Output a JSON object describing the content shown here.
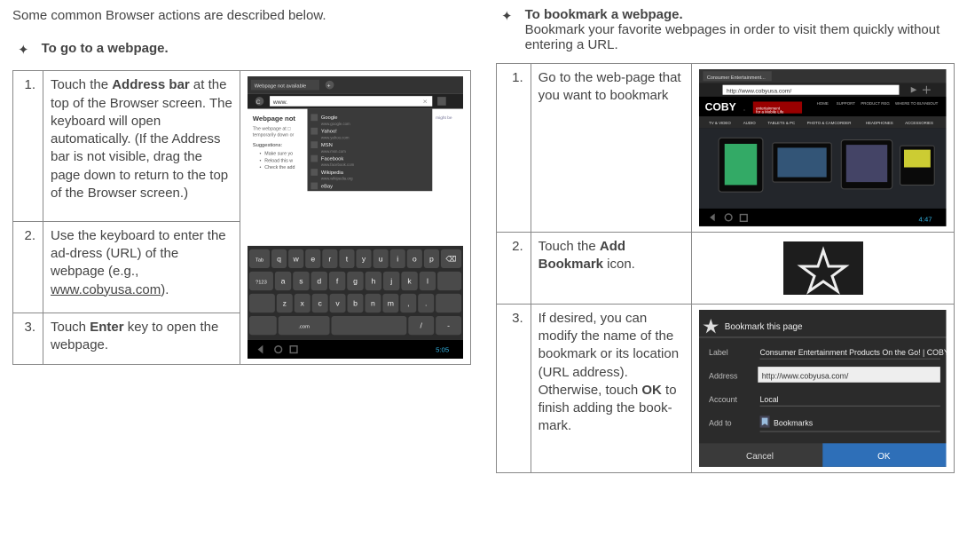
{
  "intro": "Some common Browser actions are described below.",
  "left": {
    "title": "To go to a webpage.",
    "steps": [
      {
        "num": "1.",
        "html": "Touch the <b>Address bar</b> at the top of the Browser screen. The keyboard will open automatically. (If the Address bar is not visible, drag the page down to return to the top of the Browser screen.)"
      },
      {
        "num": "2.",
        "html": "Use the keyboard to enter the ad-dress (URL) of the webpage (e.g., <u>www.cobyusa.com</u>)."
      },
      {
        "num": "3.",
        "html": "Touch <b>Enter</b> key to open the webpage."
      }
    ],
    "shot": {
      "bg": "#1a1a1a",
      "addr_text": "www.",
      "page_title": "Webpage not available",
      "sugg_title": "Webpage not",
      "sugg_items": [
        "Google",
        "Yahoo!",
        "MSN",
        "Facebook",
        "Wikipedia",
        "eBay"
      ],
      "bullets": [
        "Make sure yo",
        "Reload this w",
        "Check the add"
      ],
      "kbd_rows": [
        [
          "Tab",
          "q",
          "w",
          "e",
          "r",
          "t",
          "y",
          "u",
          "i",
          "o",
          "p",
          "⌫"
        ],
        [
          "?123",
          "a",
          "s",
          "d",
          "f",
          "g",
          "h",
          "j",
          "k",
          "l",
          ""
        ],
        [
          "",
          "z",
          "x",
          "c",
          "v",
          "b",
          "n",
          "m",
          ",",
          ".",
          ""
        ],
        [
          "",
          ".com",
          "",
          "/",
          "-"
        ]
      ],
      "clock": "5:05",
      "clock_color": "#33b5e5"
    }
  },
  "right": {
    "title": "To bookmark a webpage",
    "desc": "Bookmark your favorite webpages in order to visit them quickly without entering a URL.",
    "steps": [
      {
        "num": "1.",
        "html": "Go to the web-page that you want to bookmark"
      },
      {
        "num": "2.",
        "html": "Touch the <b>Add Bookmark</b> icon."
      },
      {
        "num": "3.",
        "html": "If desired, you can modify the name of the bookmark or its location (URL address). Otherwise, touch <b>OK</b> to finish adding the book-mark."
      }
    ],
    "shot1": {
      "bg": "#111",
      "addr": "http://www.cobyusa.com/",
      "brand": "COBY",
      "nav": [
        "HOME",
        "SUPPORT",
        "PRODUCT REG",
        "WHERE TO BUY",
        "ABOUT"
      ],
      "tabs": [
        "TV & VIDEO",
        "AUDIO",
        "TABLETS & PC",
        "PHOTO & CAMCORDER",
        "HEADPHONES",
        "ACCESSORIES"
      ],
      "clock": "4:47"
    },
    "shot2": {
      "bg": "#1d1d1d",
      "star_stroke": "#eee"
    },
    "shot3": {
      "bg": "#2b2b2b",
      "title": "Bookmark this page",
      "labels": [
        "Label",
        "Address",
        "Account",
        "Add to"
      ],
      "values": [
        "Consumer Entertainment Products On the Go! | COBY",
        "http://www.cobyusa.com/",
        "Local",
        "Bookmarks"
      ],
      "btn_cancel": "Cancel",
      "btn_ok": "OK",
      "ok_bg": "#2e6fb8"
    }
  }
}
